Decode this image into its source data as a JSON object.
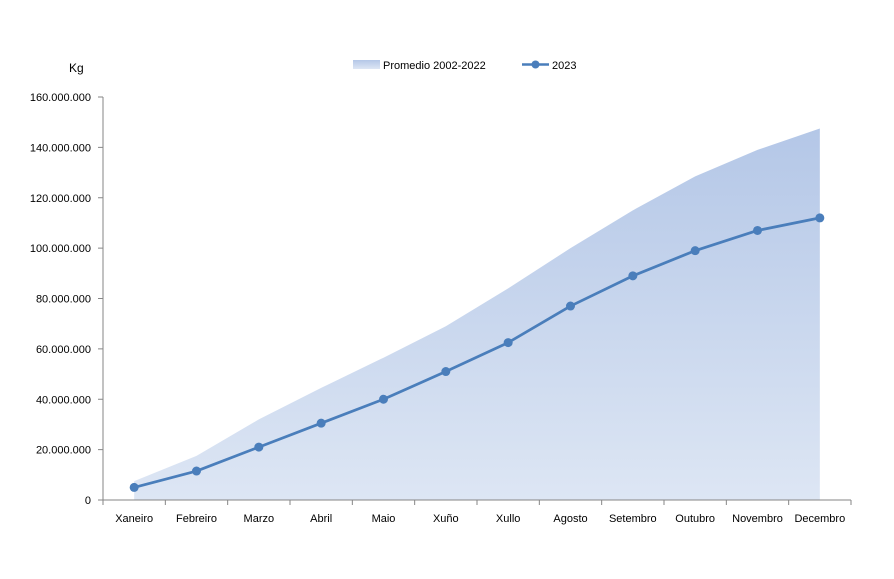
{
  "chart_data": {
    "type": "line",
    "categories": [
      "Xaneiro",
      "Febreiro",
      "Marzo",
      "Abril",
      "Maio",
      "Xuño",
      "Xullo",
      "Agosto",
      "Setembro",
      "Outubro",
      "Novembro",
      "Decembro"
    ],
    "ylabel": "Kg",
    "ylim": [
      0,
      160000000
    ],
    "yticks": [
      0,
      20000000,
      40000000,
      60000000,
      80000000,
      100000000,
      120000000,
      140000000,
      160000000
    ],
    "ytick_labels": [
      "0",
      "20.000.000",
      "40.000.000",
      "60.000.000",
      "80.000.000",
      "100.000.000",
      "120.000.000",
      "140.000.000",
      "160.000.000"
    ],
    "grid": false,
    "legend_position": "top-center",
    "series": [
      {
        "name": "Promedio 2002-2022",
        "kind": "area",
        "color": "#b4c7e7",
        "values": [
          7500000,
          17500000,
          32000000,
          44500000,
          56500000,
          69000000,
          84000000,
          100000000,
          115000000,
          128500000,
          139000000,
          147500000
        ]
      },
      {
        "name": "2023",
        "kind": "line",
        "color": "#4a7ebb",
        "values": [
          5000000,
          11500000,
          21000000,
          30500000,
          40000000,
          51000000,
          62500000,
          77000000,
          89000000,
          99000000,
          107000000,
          112000000
        ]
      }
    ]
  }
}
